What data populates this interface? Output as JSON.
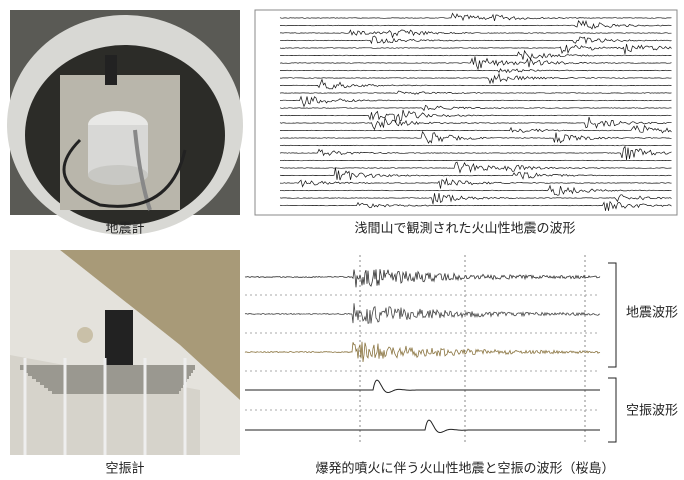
{
  "figure": {
    "seismometer_caption": "地震計",
    "asama_caption": "浅間山で観測された火山性地震の波形",
    "infrasound_caption": "空振計",
    "sakurajima_caption": "爆発的噴火に伴う火山性地震と空振の波形（桜島）",
    "seismic_label": "地震波形",
    "infrasound_label": "空振波形"
  }
}
